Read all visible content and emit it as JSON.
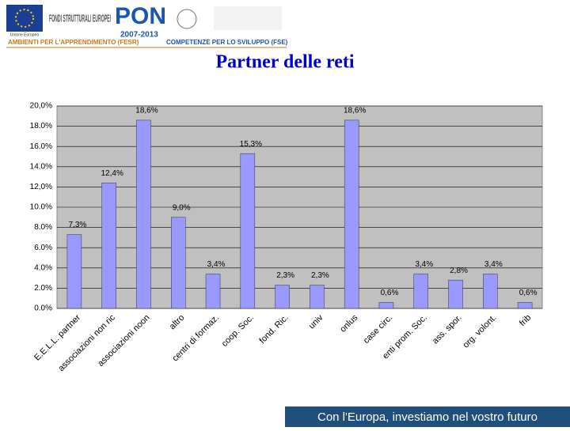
{
  "header": {
    "brand": "FONDI STRUTTURALI EUROPEI",
    "eu": "Unione Europea",
    "pon": "PON",
    "years": "2007-2013",
    "fesr": "AMBIENTI PER L'APPRENDIMENTO (FESR)",
    "fse": "COMPETENZE PER LO SVILUPPO (FSE)"
  },
  "footer": "Con l'Europa, investiamo nel vostro futuro",
  "chart_data": {
    "type": "bar",
    "title": "Partner delle reti",
    "categories": [
      "E.E.L.L. partner",
      "associazioni non ric",
      "associazioni noon",
      "altro",
      "centri di formaz.",
      "coop. Soc.",
      "fond. Ric.",
      "univ",
      "onlus",
      "case circ.",
      "enti prom. Soc.",
      "ass. spor.",
      "org. volont.",
      "frib"
    ],
    "values": [
      7.3,
      12.4,
      18.6,
      9.0,
      3.4,
      15.3,
      2.3,
      2.3,
      18.6,
      0.6,
      3.4,
      2.8,
      3.4,
      0.6
    ],
    "value_labels": [
      "7,3%",
      "12,4%",
      "18,6%",
      "9,0%",
      "3,4%",
      "15,3%",
      "2,3%",
      "2,3%",
      "18,6%",
      "0,6%",
      "3,4%",
      "2,8%",
      "3,4%",
      "0,6%"
    ],
    "color": "#9999ff",
    "ylim": [
      0,
      20
    ],
    "yticks": [
      {
        "value": 0,
        "label": "0.0%"
      },
      {
        "value": 2,
        "label": "2.0%"
      },
      {
        "value": 4,
        "label": "4.0%"
      },
      {
        "value": 6,
        "label": "6.0%"
      },
      {
        "value": 8,
        "label": "8.0%"
      },
      {
        "value": 10,
        "label": "10.0%"
      },
      {
        "value": 12,
        "label": "12,0%"
      },
      {
        "value": 14,
        "label": "14.0%"
      },
      {
        "value": 16,
        "label": "16.0%"
      },
      {
        "value": 18,
        "label": "18.0%"
      },
      {
        "value": 20,
        "label": "20,0%"
      }
    ],
    "grid": true
  }
}
